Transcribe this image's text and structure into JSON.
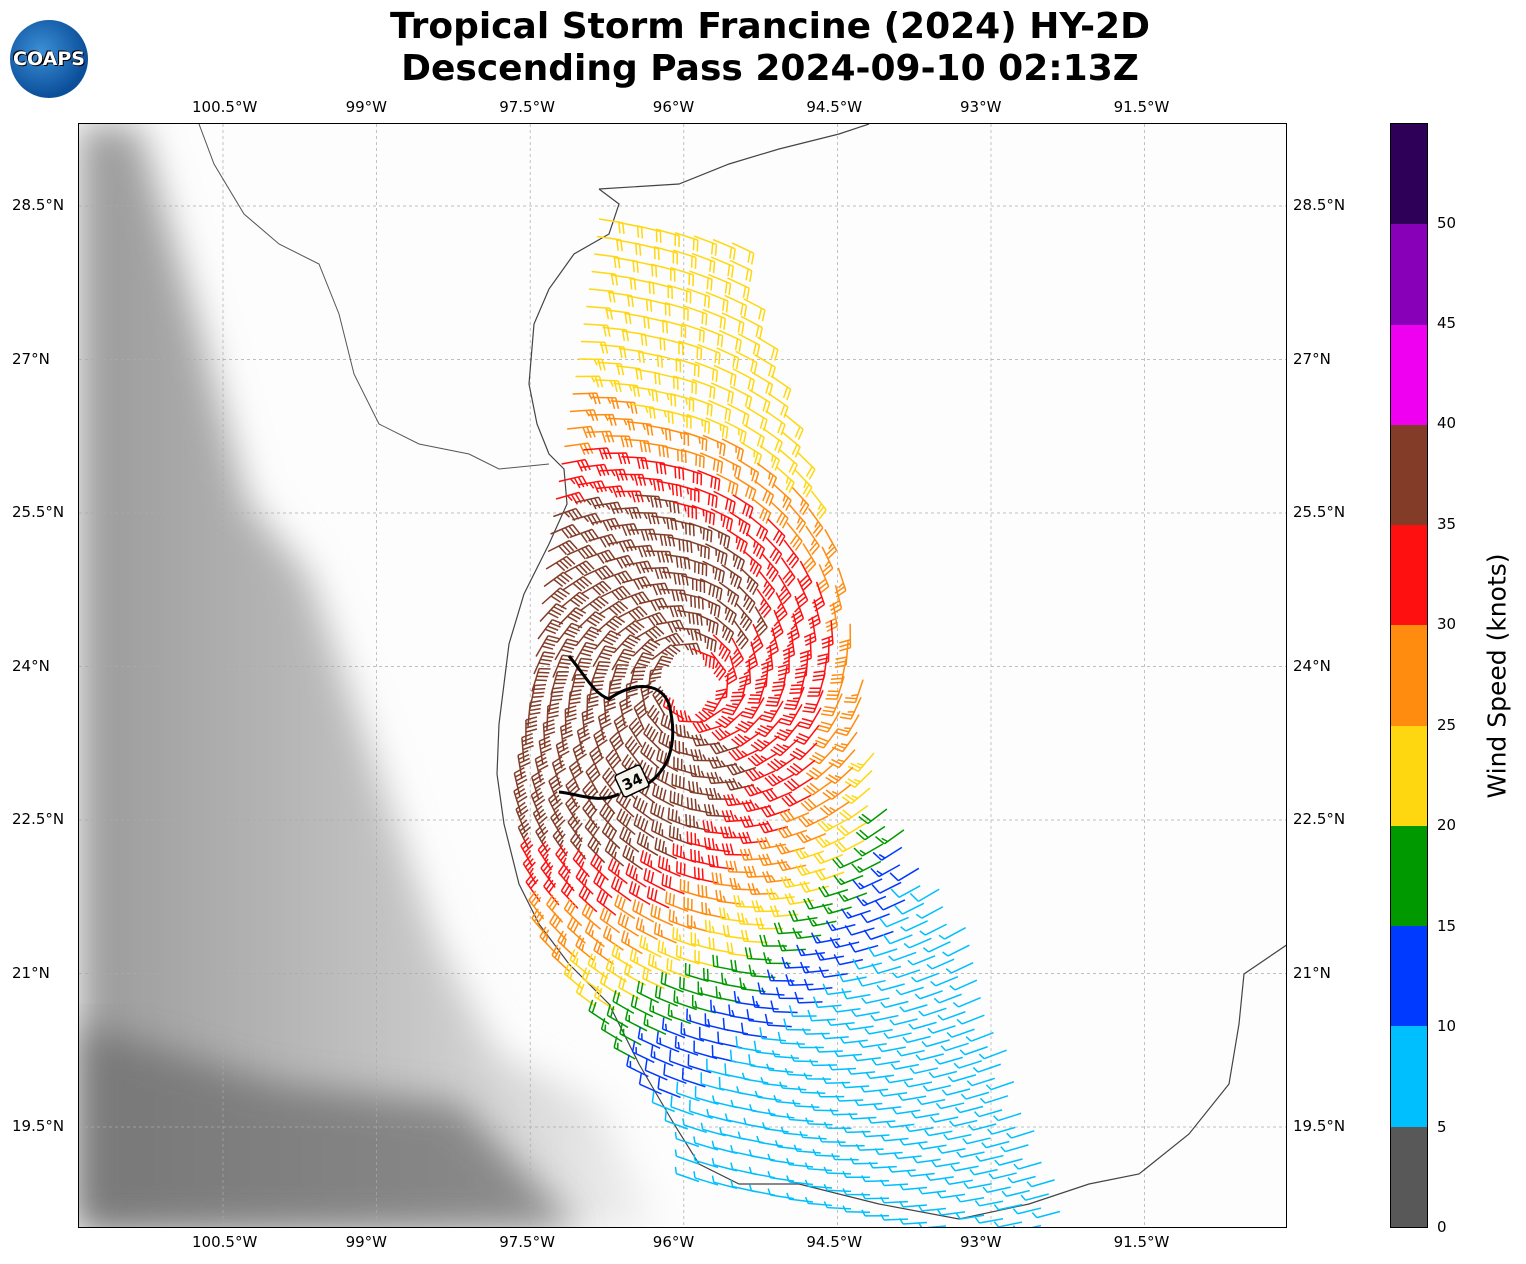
{
  "title_line1": "Tropical Storm Francine (2024) HY-2D",
  "title_line2": "Descending Pass 2024-09-10 02:13Z",
  "logo_text": "COAPS",
  "lon_ticks": [
    "100.5°W",
    "99°W",
    "97.5°W",
    "96°W",
    "94.5°W",
    "93°W",
    "91.5°W"
  ],
  "lat_ticks": [
    "28.5°N",
    "27°N",
    "25.5°N",
    "24°N",
    "22.5°N",
    "21°N",
    "19.5°N"
  ],
  "wind_radius_label": "34",
  "colorbar": {
    "label": "Wind Speed (knots)",
    "ticks": [
      "0",
      "5",
      "10",
      "15",
      "20",
      "25",
      "30",
      "35",
      "40",
      "45",
      "50"
    ],
    "colors": [
      "#585858",
      "#00bfff",
      "#0039ff",
      "#009900",
      "#ffd710",
      "#ff8c0f",
      "#ff1010",
      "#823c28",
      "#f000f0",
      "#8800b8",
      "#2e0058"
    ]
  },
  "storm_center": {
    "lon": -95.95,
    "lat": 23.85
  }
}
